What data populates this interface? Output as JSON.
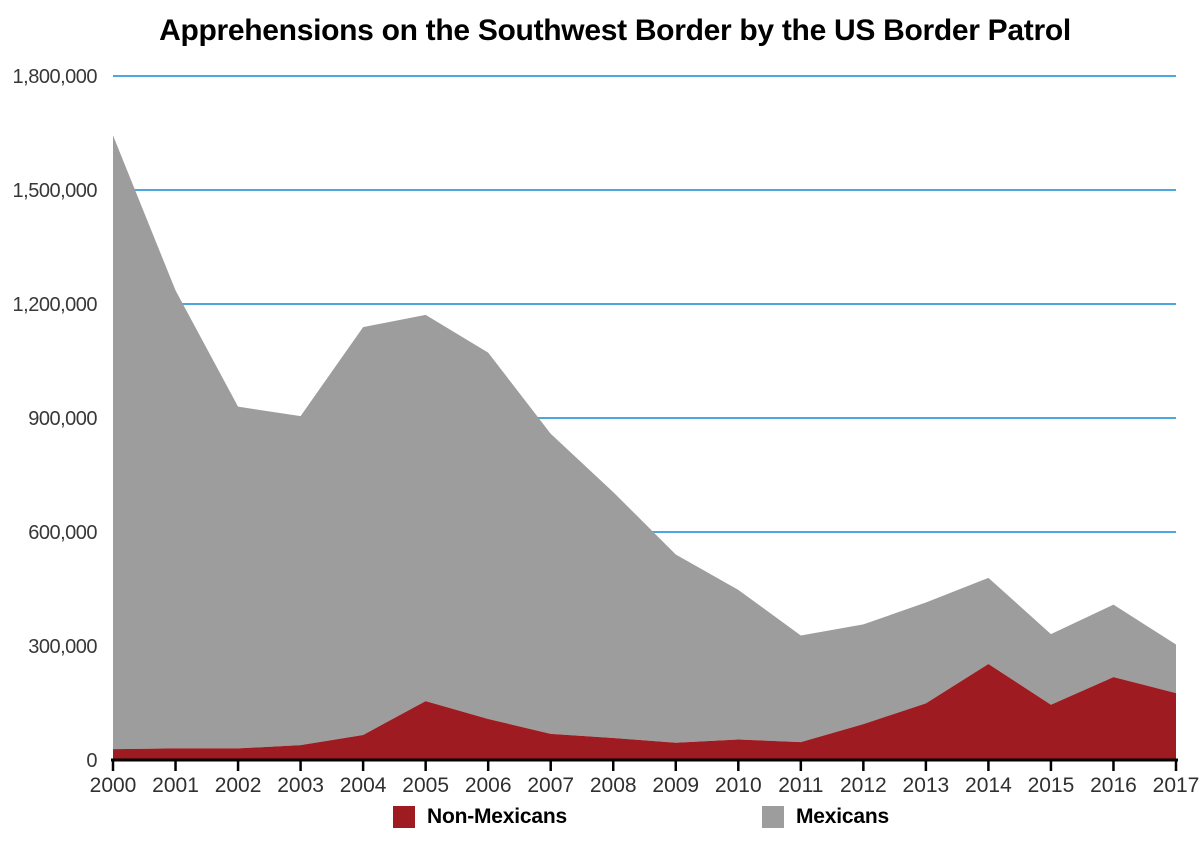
{
  "chart_data": {
    "type": "area",
    "stacked": true,
    "title": "Apprehensions on the Southwest Border by the US Border Patrol",
    "x": [
      2000,
      2001,
      2002,
      2003,
      2004,
      2005,
      2006,
      2007,
      2008,
      2009,
      2010,
      2011,
      2012,
      2013,
      2014,
      2015,
      2016,
      2017
    ],
    "x_tick_labels": [
      "2000",
      "2001",
      "2002",
      "2003",
      "2004",
      "2005",
      "2006",
      "2007",
      "2008",
      "2009",
      "2010",
      "2011",
      "2012",
      "2013",
      "2014",
      "2015",
      "2016",
      "2017"
    ],
    "series": [
      {
        "name": "Non-Mexicans",
        "color": "#9e1c21",
        "values": [
          28598,
          30441,
          30430,
          39215,
          65814,
          154995,
          108026,
          68678,
          57984,
          45299,
          54098,
          46997,
          94532,
          148988,
          252600,
          145316,
          218110,
          175978
        ]
      },
      {
        "name": "Mexicans",
        "color": "#9d9d9d",
        "values": [
          1615081,
          1205277,
          899379,
          865850,
          1073468,
          1016401,
          963946,
          789960,
          647021,
          495566,
          393633,
          280580,
          262341,
          265409,
          226771,
          186017,
          190760,
          127938
        ]
      }
    ],
    "totals_note": "chart shows series stacked; totals range ~1,643,679 (2000) down to ~303,916 (2017)",
    "ylabel": "",
    "xlabel": "",
    "ylim": [
      0,
      1800000
    ],
    "y_tick_interval": 300000,
    "y_tick_labels": [
      "0",
      "300,000",
      "600,000",
      "900,000",
      "1,200,000",
      "1,500,000",
      "1,800,000"
    ],
    "grid": "horizontal-only",
    "gridline_color": "#4da7de",
    "axis_color": "#000000",
    "tick_label_color": "#383838",
    "legend_position": "bottom",
    "legend": {
      "items": [
        "Non-Mexicans",
        "Mexicans"
      ]
    }
  }
}
